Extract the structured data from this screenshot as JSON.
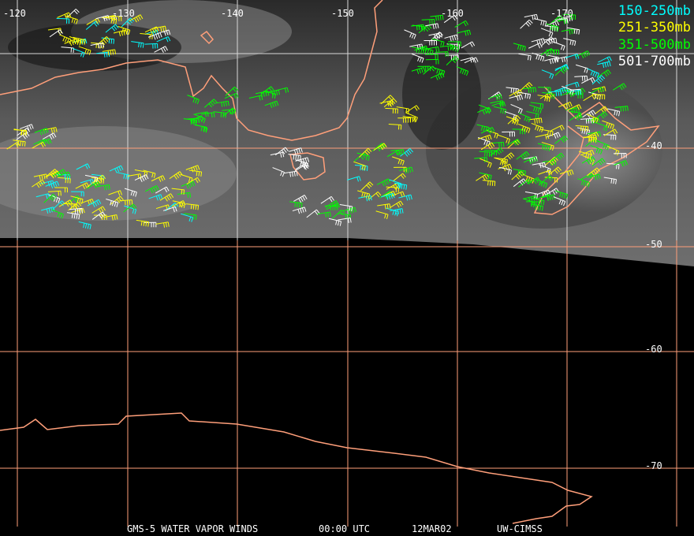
{
  "title_bar": {
    "product": "GMS-5 WATER VAPOR WINDS",
    "time": "00:00 UTC",
    "date": "12MAR02",
    "source": "UW-CIMSS"
  },
  "legend": [
    {
      "label": "150-250mb",
      "color": "#00ffff"
    },
    {
      "label": "251-350mb",
      "color": "#ffff00"
    },
    {
      "label": "351-500mb",
      "color": "#00ff00"
    },
    {
      "label": "501-700mb",
      "color": "#ffffff"
    }
  ],
  "longitude_labels": [
    "-120",
    "-130",
    "-140",
    "-150",
    "-160",
    "-170"
  ],
  "latitude_labels": [
    "-40",
    "-50",
    "-60",
    "-70"
  ],
  "colors": {
    "grid_land": "#ff9f7a",
    "grid_cloud": "#d8d8d8",
    "background": "#000000"
  }
}
